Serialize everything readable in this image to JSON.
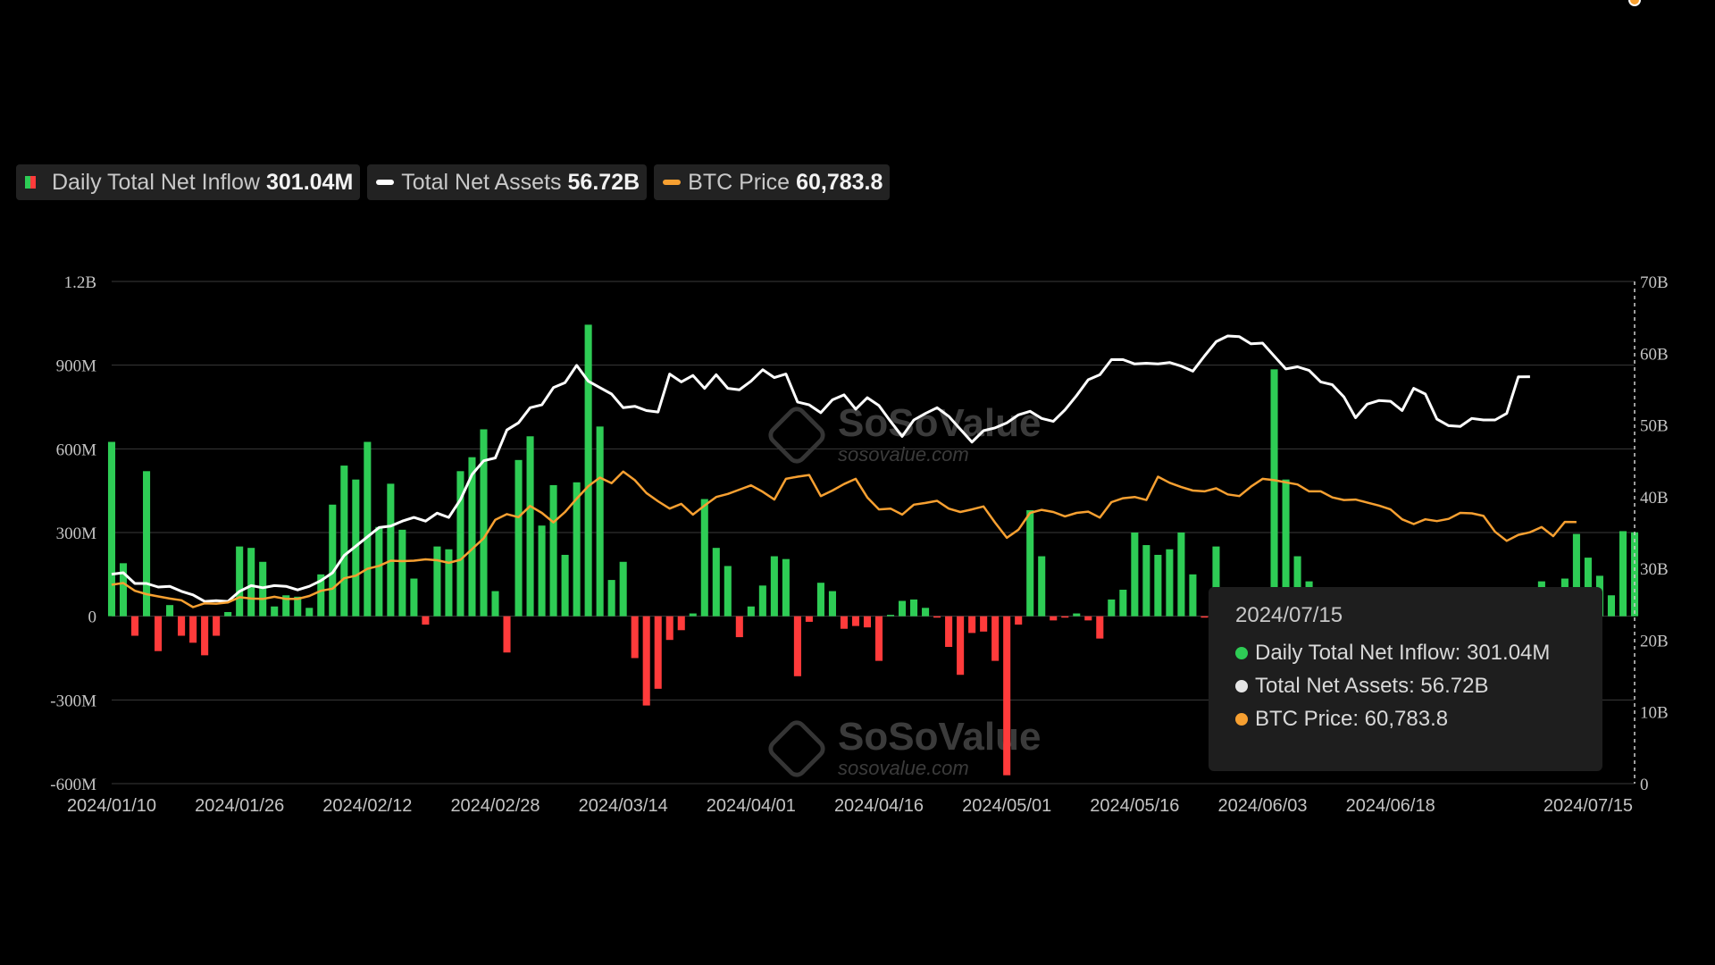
{
  "legend": [
    {
      "label": "Daily Total Net Inflow",
      "value": "301.04M",
      "swatch": "bar"
    },
    {
      "label": "Total Net Assets",
      "value": "56.72B",
      "color": "#ffffff",
      "swatch": "line"
    },
    {
      "label": "BTC Price",
      "value": "60,783.8",
      "color": "#f7a031",
      "swatch": "line"
    }
  ],
  "tooltip": {
    "date": "2024/07/15",
    "rows": [
      {
        "text": "Daily Total Net Inflow: 301.04M",
        "color": "#2ecc55"
      },
      {
        "text": "Total Net Assets: 56.72B",
        "color": "#e6e6e6"
      },
      {
        "text": "BTC Price: 60,783.8",
        "color": "#f7a031"
      }
    ]
  },
  "watermark": {
    "main": "SoSoValue",
    "sub": "sosovalue.com"
  },
  "chart_data": {
    "type": "bar+line",
    "colors": {
      "positive": "#2ecc55",
      "negative": "#ff3b3b",
      "assets": "#ffffff",
      "btc": "#f7a031",
      "grid": "#3a3a3a"
    },
    "y_left": {
      "range": [
        -600000000,
        1200000000
      ],
      "ticks": [
        {
          "v": 1200000000,
          "label": "1.2B"
        },
        {
          "v": 900000000,
          "label": "900M"
        },
        {
          "v": 600000000,
          "label": "600M"
        },
        {
          "v": 300000000,
          "label": "300M"
        },
        {
          "v": 0,
          "label": "0"
        },
        {
          "v": -300000000,
          "label": "-300M"
        },
        {
          "v": -600000000,
          "label": "-600M"
        }
      ]
    },
    "y_right": {
      "range": [
        0,
        70000000000
      ],
      "ticks": [
        {
          "v": 70000000000,
          "label": "70B"
        },
        {
          "v": 60000000000,
          "label": "60B"
        },
        {
          "v": 50000000000,
          "label": "50B"
        },
        {
          "v": 40000000000,
          "label": "40B"
        },
        {
          "v": 30000000000,
          "label": "30B"
        },
        {
          "v": 20000000000,
          "label": "20B"
        },
        {
          "v": 10000000000,
          "label": "10B"
        },
        {
          "v": 0,
          "label": "0"
        }
      ]
    },
    "x_ticks": [
      {
        "i": 0,
        "label": "2024/01/10"
      },
      {
        "i": 11,
        "label": "2024/01/26"
      },
      {
        "i": 22,
        "label": "2024/02/12"
      },
      {
        "i": 33,
        "label": "2024/02/28"
      },
      {
        "i": 44,
        "label": "2024/03/14"
      },
      {
        "i": 55,
        "label": "2024/04/01"
      },
      {
        "i": 66,
        "label": "2024/04/16"
      },
      {
        "i": 77,
        "label": "2024/05/01"
      },
      {
        "i": 88,
        "label": "2024/05/16"
      },
      {
        "i": 99,
        "label": "2024/06/03"
      },
      {
        "i": 110,
        "label": "2024/06/18"
      },
      {
        "i": 127,
        "label": "2024/07/15"
      }
    ],
    "inflow_M": [
      625,
      190,
      -70,
      520,
      -125,
      40,
      -70,
      -95,
      -140,
      -70,
      15,
      250,
      245,
      195,
      35,
      75,
      70,
      30,
      150,
      400,
      540,
      490,
      625,
      320,
      475,
      310,
      135,
      -30,
      250,
      240,
      520,
      570,
      670,
      90,
      -130,
      560,
      645,
      325,
      470,
      220,
      480,
      1045,
      680,
      130,
      195,
      -150,
      -320,
      -260,
      -85,
      -50,
      10,
      420,
      245,
      180,
      -75,
      35,
      110,
      215,
      205,
      -215,
      -20,
      120,
      90,
      -45,
      -35,
      -40,
      -160,
      5,
      55,
      60,
      30,
      -5,
      -110,
      -210,
      -60,
      -55,
      -160,
      -570,
      -30,
      380,
      215,
      -15,
      -5,
      10,
      -15,
      -80,
      60,
      95,
      300,
      255,
      220,
      240,
      300,
      150,
      -5,
      250,
      -10,
      -10,
      -20,
      5,
      885,
      490,
      215,
      125,
      -10,
      5,
      -5,
      5,
      -5,
      -5,
      0,
      -5,
      0,
      -5,
      -5,
      -5,
      0,
      0,
      0,
      -5,
      10,
      -5,
      0,
      125,
      5,
      135,
      295,
      210,
      145,
      75,
      305,
      301
    ],
    "assets_B": [
      29.2,
      29.4,
      27.9,
      27.9,
      27.4,
      27.5,
      26.8,
      26.3,
      25.4,
      25.5,
      25.4,
      26.8,
      27.6,
      27.3,
      27.6,
      27.5,
      27.0,
      27.5,
      28.3,
      29.4,
      31.8,
      33.1,
      34.4,
      35.7,
      35.9,
      36.6,
      37.1,
      36.6,
      37.7,
      37.1,
      39.6,
      43.1,
      45.0,
      45.4,
      49.3,
      50.3,
      52.4,
      52.8,
      55.2,
      55.9,
      58.3,
      56.1,
      55.2,
      54.3,
      52.4,
      52.6,
      52.0,
      51.8,
      57.1,
      56.0,
      56.9,
      55.1,
      57.0,
      55.1,
      54.9,
      56.1,
      57.7,
      56.6,
      57.1,
      53.2,
      52.8,
      51.7,
      53.5,
      54.2,
      52.2,
      53.8,
      52.7,
      50.5,
      48.4,
      50.7,
      51.6,
      52.4,
      51.2,
      49.4,
      47.6,
      49.2,
      49.6,
      50.3,
      51.4,
      51.9,
      50.9,
      50.5,
      52.1,
      54.1,
      56.3,
      57.0,
      59.1,
      59.1,
      58.5,
      58.6,
      58.5,
      58.7,
      58.2,
      57.5,
      59.6,
      61.6,
      62.4,
      62.3,
      61.3,
      61.4,
      59.6,
      57.8,
      58.1,
      57.6,
      56.0,
      55.6,
      53.9,
      51.0,
      52.9,
      53.4,
      53.3,
      52.0,
      55.1,
      54.3,
      50.8,
      49.9,
      49.8,
      50.9,
      50.7,
      50.7,
      51.6,
      56.7,
      56.72
    ],
    "btc_K": [
      46.2,
      46.6,
      44.8,
      44.0,
      43.5,
      43.0,
      42.6,
      41.0,
      41.9,
      41.8,
      42.1,
      43.3,
      43.0,
      42.9,
      43.4,
      42.9,
      42.9,
      43.6,
      44.8,
      45.3,
      47.7,
      48.3,
      49.9,
      50.6,
      51.8,
      51.7,
      51.8,
      52.1,
      51.9,
      51.3,
      52.0,
      54.5,
      57.0,
      61.3,
      62.6,
      61.9,
      64.5,
      62.9,
      60.7,
      63.1,
      66.2,
      69.1,
      71.1,
      69.8,
      72.5,
      70.5,
      67.5,
      65.6,
      63.9,
      65.0,
      62.5,
      64.6,
      66.6,
      67.3,
      68.3,
      69.3,
      67.8,
      66.0,
      70.8,
      71.3,
      71.7,
      66.8,
      68.1,
      69.6,
      70.8,
      66.5,
      63.7,
      63.9,
      62.5,
      64.8,
      65.2,
      65.7,
      63.9,
      63.1,
      63.7,
      64.4,
      60.6,
      57.1,
      59.0,
      62.9,
      63.6,
      63.1,
      62.1,
      62.9,
      63.2,
      61.8,
      65.4,
      66.3,
      66.6,
      65.9,
      71.3,
      69.9,
      68.9,
      68.1,
      67.9,
      68.6,
      67.2,
      66.8,
      69.0,
      70.8,
      70.5,
      70.0,
      69.5,
      67.9,
      67.9,
      66.5,
      65.9,
      66.0,
      65.3,
      64.6,
      63.7,
      61.4,
      60.3,
      61.4,
      61.0,
      61.5,
      62.9,
      62.8,
      62.2,
      58.5,
      56.4,
      57.8,
      58.4,
      59.6,
      57.5,
      60.8,
      60.7841
    ]
  }
}
